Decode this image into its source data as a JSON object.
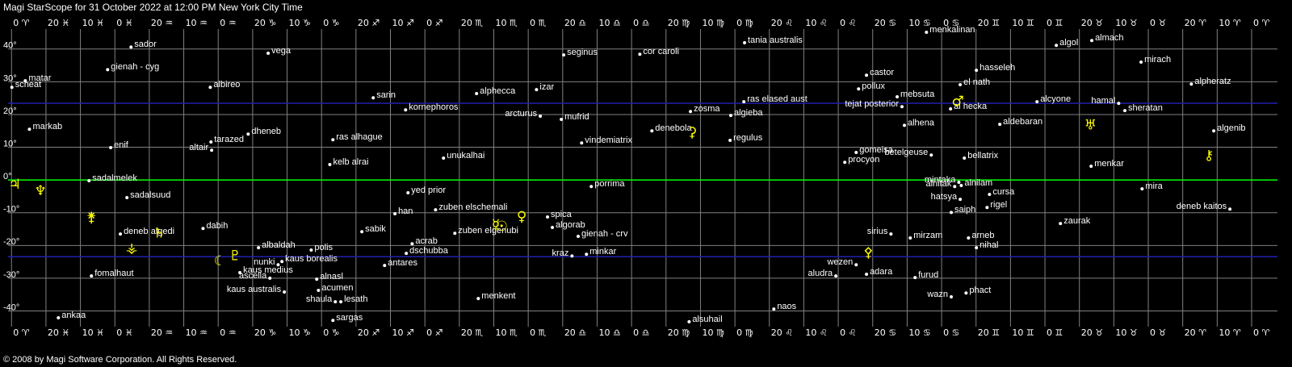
{
  "chart_data": {
    "type": "scatter",
    "title": "Magi StarScope for 31 October 2022 at 12:00 PM New York City Time",
    "footer": "© 2008 by Magi Software Corporation. All Rights Reserved.",
    "xlim": [
      361,
      -7.5
    ],
    "ylim": [
      -44.8,
      46.1
    ],
    "grid": true,
    "grid_color": "#808080",
    "star_color": "#ffffff",
    "planet_color": "#ffff00",
    "xticks": [
      {
        "value": 360,
        "label": "0 ♈"
      },
      {
        "value": 350,
        "label": "20 ♓"
      },
      {
        "value": 340,
        "label": "10 ♓"
      },
      {
        "value": 330,
        "label": "0 ♓"
      },
      {
        "value": 320,
        "label": "20 ♒"
      },
      {
        "value": 310,
        "label": "10 ♒"
      },
      {
        "value": 300,
        "label": "0 ♒"
      },
      {
        "value": 290,
        "label": "20 ♑"
      },
      {
        "value": 280,
        "label": "10 ♑"
      },
      {
        "value": 270,
        "label": "0 ♑"
      },
      {
        "value": 260,
        "label": "20 ♐"
      },
      {
        "value": 250,
        "label": "10 ♐"
      },
      {
        "value": 240,
        "label": "0 ♐"
      },
      {
        "value": 230,
        "label": "20 ♏"
      },
      {
        "value": 220,
        "label": "10 ♏"
      },
      {
        "value": 210,
        "label": "0 ♏"
      },
      {
        "value": 200,
        "label": "20 ♎"
      },
      {
        "value": 190,
        "label": "10 ♎"
      },
      {
        "value": 180,
        "label": "0 ♎"
      },
      {
        "value": 170,
        "label": "20 ♍"
      },
      {
        "value": 160,
        "label": "10 ♍"
      },
      {
        "value": 150,
        "label": "0 ♍"
      },
      {
        "value": 140,
        "label": "20 ♌"
      },
      {
        "value": 130,
        "label": "10 ♌"
      },
      {
        "value": 120,
        "label": "0 ♌"
      },
      {
        "value": 110,
        "label": "20 ♋"
      },
      {
        "value": 100,
        "label": "10 ♋"
      },
      {
        "value": 90,
        "label": "0 ♋"
      },
      {
        "value": 80,
        "label": "20 ♊"
      },
      {
        "value": 70,
        "label": "10 ♊"
      },
      {
        "value": 60,
        "label": "0 ♊"
      },
      {
        "value": 50,
        "label": "20 ♉"
      },
      {
        "value": 40,
        "label": "10 ♉"
      },
      {
        "value": 30,
        "label": "0 ♉"
      },
      {
        "value": 20,
        "label": "20 ♈"
      },
      {
        "value": 10,
        "label": "10 ♈"
      },
      {
        "value": 0,
        "label": "0 ♈"
      }
    ],
    "yticks": [
      {
        "value": 40,
        "label": "40°"
      },
      {
        "value": 30,
        "label": "30°"
      },
      {
        "value": 20,
        "label": "20°"
      },
      {
        "value": 10,
        "label": "10°"
      },
      {
        "value": 0,
        "label": "0°"
      },
      {
        "value": -10,
        "label": "-10°"
      },
      {
        "value": -20,
        "label": "-20°"
      },
      {
        "value": -30,
        "label": "-30°"
      },
      {
        "value": -40,
        "label": "-40°"
      }
    ],
    "reference_lines": [
      {
        "value": 0,
        "color": "#00ff00"
      },
      {
        "value": 23.44,
        "color": "#2020b0"
      },
      {
        "value": -23.44,
        "color": "#2020b0"
      }
    ],
    "stars": [
      {
        "name": "sador",
        "x": 325.3,
        "y": 40.6
      },
      {
        "name": "vega",
        "x": 285.5,
        "y": 38.7
      },
      {
        "name": "gienah - cyg",
        "x": 332.1,
        "y": 33.7
      },
      {
        "name": "matar",
        "x": 356.0,
        "y": 30.3
      },
      {
        "name": "scheat",
        "x": 359.9,
        "y": 28.3
      },
      {
        "name": "markab",
        "x": 354.8,
        "y": 15.5
      },
      {
        "name": "albireo",
        "x": 302.3,
        "y": 28.3
      },
      {
        "name": "enif",
        "x": 331.2,
        "y": 9.9
      },
      {
        "name": "dheneb",
        "x": 291.3,
        "y": 14.0
      },
      {
        "name": "tarazed",
        "x": 302.1,
        "y": 11.6
      },
      {
        "name": "altair",
        "x": 301.9,
        "y": 9.1
      },
      {
        "name": "ras alhague",
        "x": 266.7,
        "y": 12.3
      },
      {
        "name": "kelb alrai",
        "x": 267.6,
        "y": 4.7
      },
      {
        "name": "sarin",
        "x": 255.0,
        "y": 25.1
      },
      {
        "name": "kornephoros",
        "x": 245.6,
        "y": 21.4
      },
      {
        "name": "alphecca",
        "x": 225.0,
        "y": 26.4
      },
      {
        "name": "izar",
        "x": 207.6,
        "y": 27.6
      },
      {
        "name": "arcturus",
        "x": 206.5,
        "y": 19.5
      },
      {
        "name": "mufrid",
        "x": 200.4,
        "y": 18.5
      },
      {
        "name": "seginus",
        "x": 199.7,
        "y": 38.2
      },
      {
        "name": "cor caroli",
        "x": 177.6,
        "y": 38.4
      },
      {
        "name": "tania australis",
        "x": 147.2,
        "y": 41.9
      },
      {
        "name": "menkalinan",
        "x": 94.4,
        "y": 45.1
      },
      {
        "name": "castor",
        "x": 111.8,
        "y": 32.0
      },
      {
        "name": "pollux",
        "x": 114.1,
        "y": 27.8
      },
      {
        "name": "mebsuta",
        "x": 102.9,
        "y": 25.4
      },
      {
        "name": "tejat posterior",
        "x": 101.5,
        "y": 22.4
      },
      {
        "name": "el nath",
        "x": 84.6,
        "y": 29.1
      },
      {
        "name": "hasseleh",
        "x": 79.9,
        "y": 33.5
      },
      {
        "name": "al hecka",
        "x": 87.4,
        "y": 21.7
      },
      {
        "name": "alhena",
        "x": 100.8,
        "y": 16.7
      },
      {
        "name": "aldebaran",
        "x": 73.1,
        "y": 17.0
      },
      {
        "name": "algol",
        "x": 56.7,
        "y": 41.1
      },
      {
        "name": "almach",
        "x": 46.4,
        "y": 42.6
      },
      {
        "name": "mirach",
        "x": 32.1,
        "y": 36.0
      },
      {
        "name": "alpheratz",
        "x": 17.5,
        "y": 29.3
      },
      {
        "name": "alcyone",
        "x": 62.3,
        "y": 23.9
      },
      {
        "name": "hamal",
        "x": 38.6,
        "y": 23.4
      },
      {
        "name": "sheratan",
        "x": 36.8,
        "y": 21.2
      },
      {
        "name": "algenib",
        "x": 11.0,
        "y": 15.0
      },
      {
        "name": "menkar",
        "x": 46.6,
        "y": 4.2
      },
      {
        "name": "mira",
        "x": 31.8,
        "y": -2.7
      },
      {
        "name": "deneb kaitos",
        "x": 6.3,
        "y": -8.9
      },
      {
        "name": "zaurak",
        "x": 55.5,
        "y": -13.3
      },
      {
        "name": "zosma",
        "x": 162.9,
        "y": 20.9
      },
      {
        "name": "ras elased aust",
        "x": 147.4,
        "y": 23.9
      },
      {
        "name": "algieba",
        "x": 151.2,
        "y": 19.7
      },
      {
        "name": "denebola",
        "x": 174.1,
        "y": 15.0
      },
      {
        "name": "regulus",
        "x": 151.4,
        "y": 12.1
      },
      {
        "name": "vindemiatrix",
        "x": 194.5,
        "y": 11.3
      },
      {
        "name": "unukalhai",
        "x": 234.6,
        "y": 6.7
      },
      {
        "name": "gomeisa",
        "x": 114.8,
        "y": 8.4
      },
      {
        "name": "procyon",
        "x": 118.1,
        "y": 5.4
      },
      {
        "name": "betelgeuse",
        "x": 93.0,
        "y": 7.6
      },
      {
        "name": "bellatrix",
        "x": 83.4,
        "y": 6.7
      },
      {
        "name": "mintaka",
        "x": 85.0,
        "y": -0.7
      },
      {
        "name": "alnitak",
        "x": 86.2,
        "y": -2.0
      },
      {
        "name": "alnilam",
        "x": 84.3,
        "y": -1.7
      },
      {
        "name": "cursa",
        "x": 76.1,
        "y": -4.4
      },
      {
        "name": "hatsya",
        "x": 84.6,
        "y": -5.9
      },
      {
        "name": "saiph",
        "x": 87.2,
        "y": -9.9
      },
      {
        "name": "rigel",
        "x": 76.8,
        "y": -8.4
      },
      {
        "name": "sirius",
        "x": 104.7,
        "y": -16.5
      },
      {
        "name": "mirzam",
        "x": 99.1,
        "y": -17.7
      },
      {
        "name": "arneb",
        "x": 82.2,
        "y": -17.7
      },
      {
        "name": "nihal",
        "x": 79.9,
        "y": -20.7
      },
      {
        "name": "wezen",
        "x": 114.8,
        "y": -25.9
      },
      {
        "name": "adara",
        "x": 111.8,
        "y": -28.8
      },
      {
        "name": "aludra",
        "x": 120.7,
        "y": -29.3
      },
      {
        "name": "furud",
        "x": 97.7,
        "y": -29.8
      },
      {
        "name": "wazn",
        "x": 87.2,
        "y": -35.7
      },
      {
        "name": "phact",
        "x": 82.9,
        "y": -34.5
      },
      {
        "name": "naos",
        "x": 138.7,
        "y": -39.4
      },
      {
        "name": "alsuhail",
        "x": 163.3,
        "y": -43.3
      },
      {
        "name": "porrima",
        "x": 191.7,
        "y": -2.0
      },
      {
        "name": "spica",
        "x": 204.4,
        "y": -11.3
      },
      {
        "name": "algorab",
        "x": 203.0,
        "y": -14.5
      },
      {
        "name": "gienah - crv",
        "x": 195.5,
        "y": -17.2
      },
      {
        "name": "kraz",
        "x": 197.3,
        "y": -23.2
      },
      {
        "name": "minkar",
        "x": 193.1,
        "y": -22.7
      },
      {
        "name": "zuben elschemali",
        "x": 236.9,
        "y": -9.1
      },
      {
        "name": "zuben elgenubi",
        "x": 231.3,
        "y": -16.3
      },
      {
        "name": "yed prior",
        "x": 244.9,
        "y": -3.9
      },
      {
        "name": "han",
        "x": 248.7,
        "y": -10.3
      },
      {
        "name": "sabik",
        "x": 258.3,
        "y": -15.8
      },
      {
        "name": "acrab",
        "x": 243.7,
        "y": -19.5
      },
      {
        "name": "dschubba",
        "x": 245.4,
        "y": -22.4
      },
      {
        "name": "antares",
        "x": 251.7,
        "y": -26.1
      },
      {
        "name": "menkent",
        "x": 224.5,
        "y": -36.2
      },
      {
        "name": "albaldah",
        "x": 288.3,
        "y": -20.7
      },
      {
        "name": "polis",
        "x": 273.0,
        "y": -21.4
      },
      {
        "name": "kaus borealis",
        "x": 281.5,
        "y": -24.9
      },
      {
        "name": "nunki",
        "x": 282.6,
        "y": -25.9
      },
      {
        "name": "kaus medius",
        "x": 293.7,
        "y": -28.3
      },
      {
        "name": "ascella",
        "x": 285.0,
        "y": -30.0
      },
      {
        "name": "alnasl",
        "x": 271.4,
        "y": -30.3
      },
      {
        "name": "kaus australis",
        "x": 280.8,
        "y": -34.2
      },
      {
        "name": "acumen",
        "x": 270.9,
        "y": -33.7
      },
      {
        "name": "shaula",
        "x": 266.0,
        "y": -37.2
      },
      {
        "name": "lesath",
        "x": 264.4,
        "y": -37.2
      },
      {
        "name": "sargas",
        "x": 266.7,
        "y": -42.9
      },
      {
        "name": "fomalhaut",
        "x": 336.8,
        "y": -29.3
      },
      {
        "name": "ankaa",
        "x": 346.4,
        "y": -42.1
      },
      {
        "name": "sadalmelek",
        "x": 337.5,
        "y": -0.2
      },
      {
        "name": "sadalsuud",
        "x": 326.5,
        "y": -5.4
      },
      {
        "name": "deneb algedi",
        "x": 328.4,
        "y": -16.5
      },
      {
        "name": "dabih",
        "x": 304.4,
        "y": -14.8
      }
    ],
    "planets": [
      {
        "symbol": "♃",
        "x": 359.1,
        "y": -1.5
      },
      {
        "symbol": "♆",
        "x": 351.6,
        "y": -3.4
      },
      {
        "symbol": "⚵",
        "x": 336.8,
        "y": -11.6
      },
      {
        "symbol": "⚶",
        "x": 325.1,
        "y": -20.9
      },
      {
        "symbol": "♄",
        "x": 317.1,
        "y": -16.3
      },
      {
        "symbol": "☾",
        "x": 299.5,
        "y": -24.9
      },
      {
        "symbol": "♇",
        "x": 295.1,
        "y": -23.2
      },
      {
        "symbol": "☉",
        "x": 217.7,
        "y": -14.3
      },
      {
        "symbol": "☿",
        "x": 219.4,
        "y": -13.8
      },
      {
        "symbol": "♀",
        "x": 211.9,
        "y": -11.3
      },
      {
        "symbol": "⚳",
        "x": 162.4,
        "y": 14.5
      },
      {
        "symbol": "⚴",
        "x": 111.3,
        "y": -22.2
      },
      {
        "symbol": "♂",
        "x": 85.3,
        "y": 23.9
      },
      {
        "symbol": "♅",
        "x": 46.8,
        "y": 16.7
      },
      {
        "symbol": "⚷",
        "x": 12.4,
        "y": 7.4
      }
    ]
  }
}
